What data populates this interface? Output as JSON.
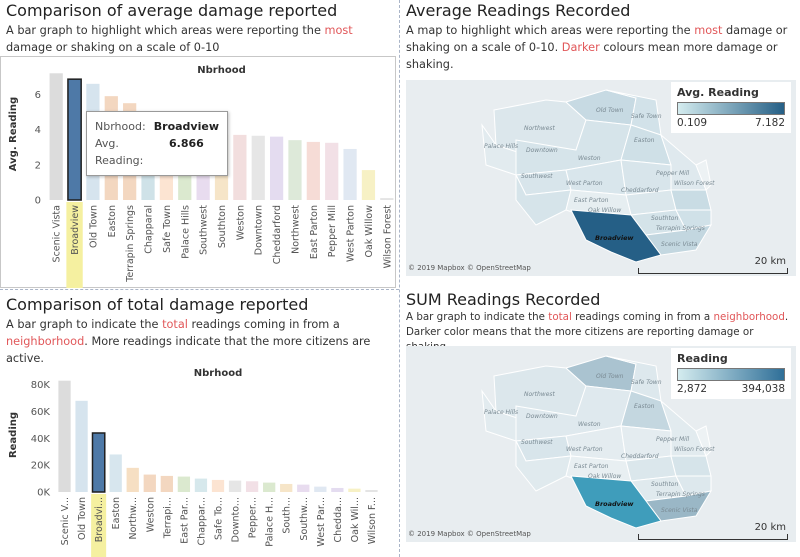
{
  "colors": {
    "accent": "#e15759",
    "selected_bar": "#4e79a7",
    "highlight": "#f5f0a0"
  },
  "panels": {
    "avg_bar": {
      "title": "Comparison of average damage reported",
      "desc_before": "A bar graph to highlight which areas were reporting the ",
      "desc_hl": "most",
      "desc_after": " damage or shaking on a scale of 0-10",
      "column_header": "Nbrhood",
      "tooltip": {
        "k1": "Nbrhood:",
        "v1": "Broadview",
        "k2": "Avg. Reading:",
        "v2": "6.866"
      }
    },
    "avg_map": {
      "title": "Average Readings Recorded",
      "desc_before": "A map to highlight which areas were reporting the ",
      "desc_hl1": "most",
      "desc_mid": " damage or shaking on a scale of 0-10. ",
      "desc_hl2": "Darker",
      "desc_after": " colours mean more damage or shaking.",
      "legend_title": "Avg. Reading",
      "legend_min": "0.109",
      "legend_max": "7.182",
      "attribution": "© 2019 Mapbox © OpenStreetMap",
      "scale": "20 km"
    },
    "sum_bar": {
      "title": "Comparison of total damage reported",
      "desc_before": "A bar graph to indicate the ",
      "desc_hl1": "total",
      "desc_mid": " readings coming in from a ",
      "desc_hl2": "neighborhood",
      "desc_after": ". More readings indicate that the more citizens are active.",
      "column_header": "Nbrhood"
    },
    "sum_map": {
      "title": "SUM Readings Recorded",
      "desc_before": "A bar graph to indicate the ",
      "desc_hl1": "total",
      "desc_mid": " readings coming in from a ",
      "desc_hl2": "neighborhood",
      "desc_after": ". Darker color means  that the more citizens are reporting damage or shaking.",
      "legend_title": "Reading",
      "legend_min": "2,872",
      "legend_max": "394,038",
      "attribution": "© 2019 Mapbox © OpenStreetMap",
      "scale": "20 km"
    }
  },
  "map_labels": [
    "Northwest",
    "Old Town",
    "Safe Town",
    "Palace Hills",
    "Downtown",
    "Easton",
    "Weston",
    "Southwest",
    "Pepper Mill",
    "Wilson Forest",
    "West Parton",
    "Cheddarford",
    "East Parton",
    "Oak Willow",
    "Southton",
    "Terrapin Springs",
    "Broadview",
    "Scenic Vista",
    "Chapparal"
  ],
  "chart_data": [
    {
      "type": "bar",
      "xlabel": "",
      "ylabel": "Avg. Reading",
      "ylim": [
        0,
        7.5
      ],
      "yticks": [
        "0",
        "2",
        "4",
        "6"
      ],
      "categories": [
        "Scenic Vista",
        "Broadview",
        "Old Town",
        "Easton",
        "Terrapin Springs",
        "Chapparal",
        "Safe Town",
        "Palace Hills",
        "Southwest",
        "Southton",
        "Weston",
        "Downtown",
        "Cheddarford",
        "Northwest",
        "East Parton",
        "Pepper Mill",
        "West Parton",
        "Oak Willow",
        "Wilson Forest"
      ],
      "values": [
        7.2,
        6.866,
        6.6,
        5.9,
        5.5,
        4.6,
        4.3,
        4.1,
        3.9,
        3.7,
        3.7,
        3.65,
        3.6,
        3.4,
        3.3,
        3.25,
        2.9,
        1.7,
        0.11
      ],
      "selected": "Broadview",
      "colors": [
        "#dcdcdc",
        "#4e79a7",
        "#d6e4ee",
        "#f3d7c0",
        "#f3d7c0",
        "#cfe2e8",
        "#fce4d2",
        "#dbe9cf",
        "#e8dcef",
        "#f6e5c8",
        "#f2dede",
        "#e6e6e6",
        "#e4dcf0",
        "#dde9d9",
        "#f6dcd6",
        "#f2e0e6",
        "#e0e8f2",
        "#f7f1c5",
        "#e4e4e4"
      ]
    },
    {
      "type": "bar",
      "xlabel": "",
      "ylabel": "Reading",
      "ylim": [
        0,
        85000
      ],
      "yticks": [
        "0K",
        "20K",
        "40K",
        "60K",
        "80K"
      ],
      "categories": [
        "Scenic V...",
        "Old Town",
        "Broadvi...",
        "Easton",
        "Northw...",
        "Weston",
        "Terrapi...",
        "East Par...",
        "Chappar...",
        "Safe To...",
        "Downto...",
        "Pepper...",
        "Palace H...",
        "South...",
        "Southw...",
        "West Par...",
        "Chedda...",
        "Oak Wil...",
        "Wilson F..."
      ],
      "values": [
        83000,
        68000,
        44000,
        28000,
        18000,
        13000,
        12000,
        11500,
        10000,
        9000,
        8500,
        8000,
        7000,
        6000,
        5500,
        4000,
        3000,
        2500,
        1500
      ],
      "selected": "Broadvi...",
      "colors": [
        "#dcdcdc",
        "#d6e4ee",
        "#4e79a7",
        "#d7e6ee",
        "#f6dfc3",
        "#f3d7c0",
        "#f3d7c0",
        "#dbe9cf",
        "#d6e8ec",
        "#fce4d2",
        "#e6e6e6",
        "#f2e0e6",
        "#dbe9cf",
        "#f6e5c8",
        "#e8dcef",
        "#e0e8f2",
        "#e4dcf0",
        "#f7f1c5",
        "#e4e4e4"
      ]
    }
  ]
}
